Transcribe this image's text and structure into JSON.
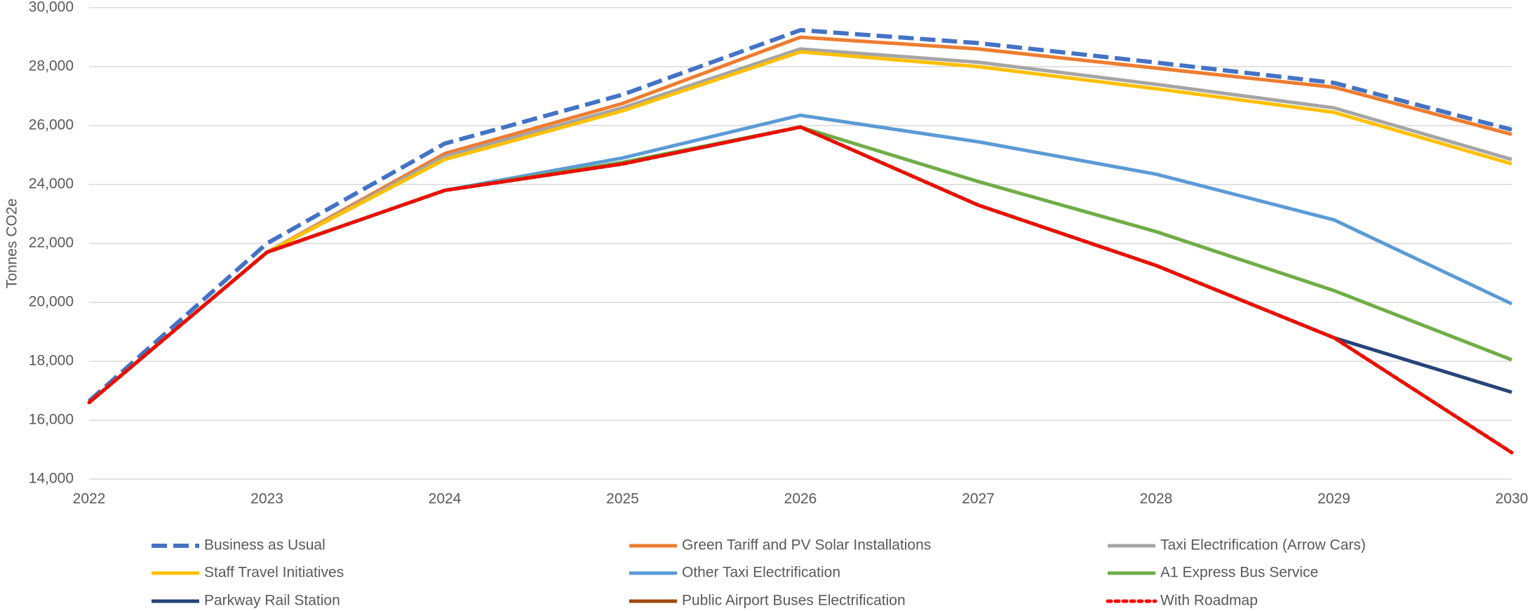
{
  "chart_data": {
    "type": "line",
    "y_label": "Tonnes CO2e",
    "x": [
      2022,
      2023,
      2024,
      2025,
      2026,
      2027,
      2028,
      2029,
      2030
    ],
    "xlim": [
      2022,
      2030
    ],
    "xticks": [
      2022,
      2023,
      2024,
      2025,
      2026,
      2027,
      2028,
      2029,
      2030
    ],
    "ylim": [
      14000,
      30000
    ],
    "yticks": [
      {
        "value": 14000,
        "label": "14,000"
      },
      {
        "value": 16000,
        "label": "16,000"
      },
      {
        "value": 18000,
        "label": "18,000"
      },
      {
        "value": 20000,
        "label": "20,000"
      },
      {
        "value": 22000,
        "label": "22,000"
      },
      {
        "value": 24000,
        "label": "24,000"
      },
      {
        "value": 26000,
        "label": "26,000"
      },
      {
        "value": 28000,
        "label": "28,000"
      },
      {
        "value": 30000,
        "label": "30,000"
      }
    ],
    "grid": true,
    "legend": "bottom",
    "series": [
      {
        "name": "Business as Usual",
        "color": "#4472c4",
        "style": "dashed",
        "values": [
          16650,
          22000,
          25390,
          27050,
          29240,
          28800,
          28140,
          27450,
          25860
        ]
      },
      {
        "name": "Green Tariff and PV Solar Installations",
        "color": "#ed7d31",
        "style": "solid",
        "values": [
          16600,
          21700,
          25050,
          26750,
          29000,
          28600,
          27950,
          27300,
          25700
        ]
      },
      {
        "name": "Taxi Electrification (Arrow Cars)",
        "color": "#a5a5a5",
        "style": "solid",
        "values": [
          16600,
          21700,
          24950,
          26600,
          28600,
          28150,
          27400,
          26600,
          24850
        ]
      },
      {
        "name": "Staff Travel Initiatives",
        "color": "#ffc000",
        "style": "solid",
        "values": [
          16600,
          21700,
          24850,
          26500,
          28500,
          28000,
          27250,
          26450,
          24700
        ]
      },
      {
        "name": "Other Taxi Electrification",
        "color": "#5b9bd5",
        "style": "solid",
        "values": [
          16600,
          21700,
          23800,
          24900,
          26350,
          25450,
          24350,
          22800,
          19950
        ]
      },
      {
        "name": "A1 Express Bus Service",
        "color": "#70ad47",
        "style": "solid",
        "values": [
          16600,
          21700,
          23800,
          24750,
          25950,
          24100,
          22400,
          20400,
          18050
        ]
      },
      {
        "name": "Parkway Rail Station",
        "color": "#264478",
        "style": "solid",
        "values": [
          16600,
          21700,
          23800,
          24700,
          25950,
          23300,
          21250,
          18800,
          16950
        ]
      },
      {
        "name": "Public Airport Buses Electrification",
        "color": "#9e480e",
        "style": "solid",
        "values": [
          16600,
          21700,
          23800,
          24700,
          25950,
          23300,
          21250,
          18800,
          14900
        ]
      },
      {
        "name": "With Roadmap",
        "color": "#ff0000",
        "style": "dotted",
        "values": [
          16600,
          21700,
          23800,
          24700,
          25950,
          23300,
          21250,
          18800,
          14900
        ]
      }
    ]
  }
}
